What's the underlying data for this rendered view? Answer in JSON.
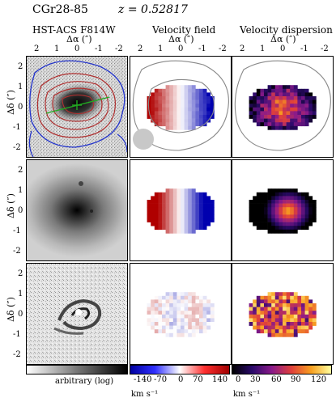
{
  "header": {
    "object": "CGr28-85",
    "redshift": "z = 0.52817"
  },
  "columns": [
    {
      "title": "HST-ACS F814W"
    },
    {
      "title": "Velocity field"
    },
    {
      "title": "Velocity dispersion"
    }
  ],
  "axes": {
    "x_label": "Δα (″)",
    "y_label": "Δδ (″)",
    "x_ticks": [
      "2",
      "1",
      "0",
      "-1",
      "-2"
    ],
    "y_ticks": [
      "2",
      "1",
      "0",
      "-1",
      "-2"
    ]
  },
  "colorbars": {
    "image": {
      "label": "arbitrary (log)"
    },
    "velocity": {
      "ticks": [
        "-140",
        "-70",
        "0",
        "70",
        "140"
      ],
      "unit": "km s⁻¹"
    },
    "dispersion": {
      "ticks": [
        "0",
        "30",
        "60",
        "90",
        "120"
      ],
      "unit": "km s⁻¹"
    }
  },
  "palette": {
    "contour_blue": "#2233cc",
    "contour_red": "#aa2222",
    "pa_line": "#22aa22",
    "vel_neg": "#1010d0",
    "vel_pos": "#d01010"
  }
}
